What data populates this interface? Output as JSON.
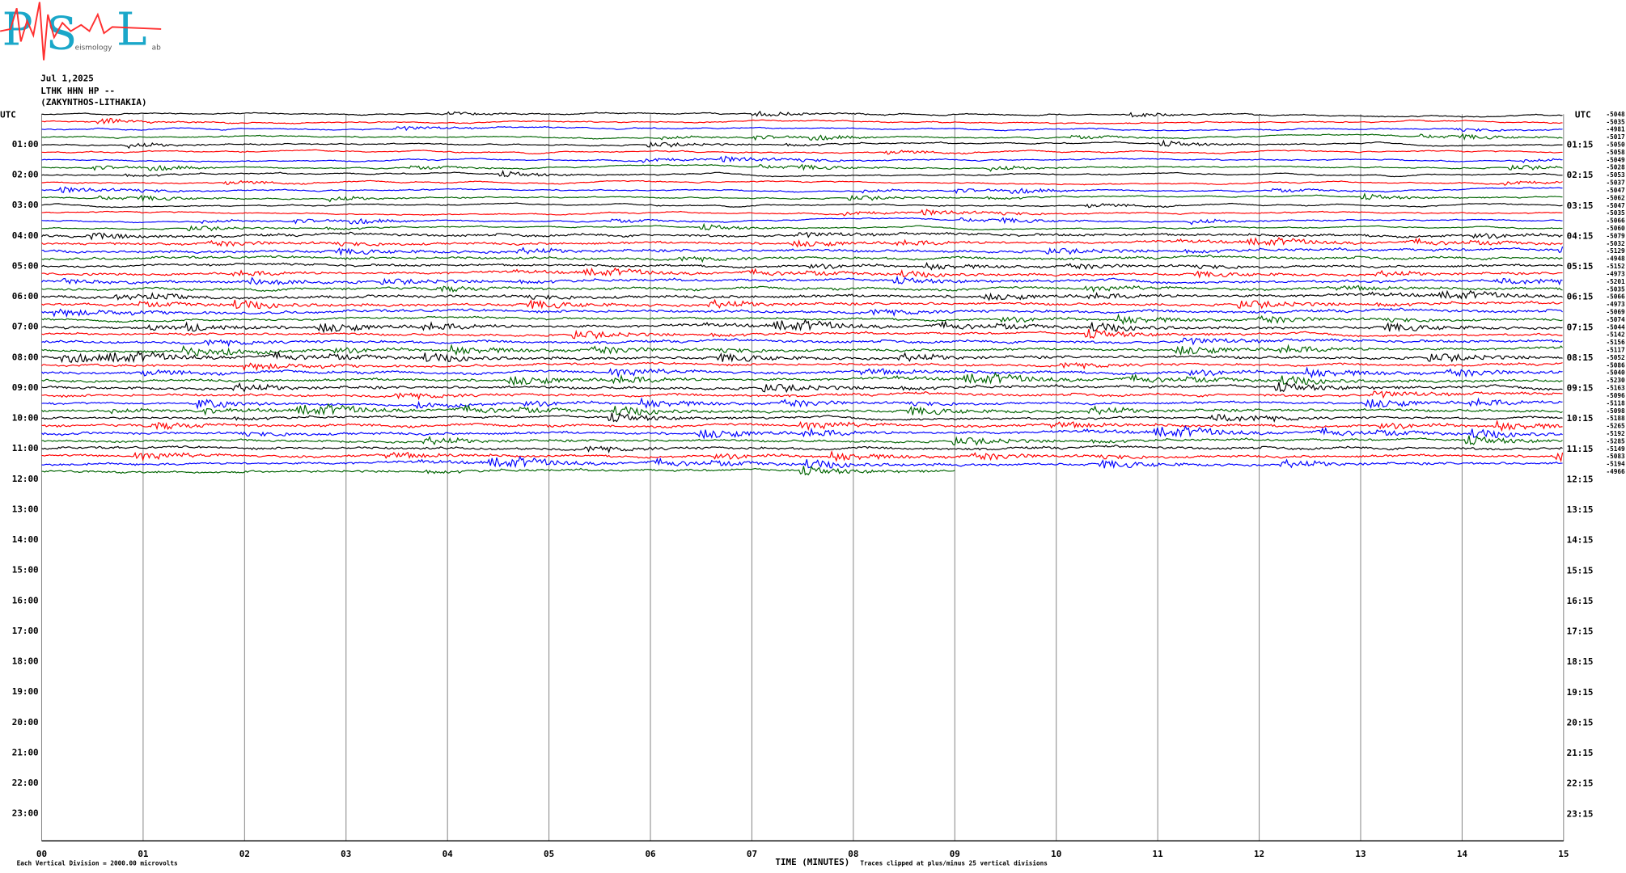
{
  "header": {
    "logo": {
      "letters": [
        "P",
        "S",
        "L"
      ],
      "small": [
        "eismology",
        "ab"
      ]
    },
    "date": "Jul 1,2025",
    "station": "LTHK HHN HP --",
    "location": "(ZAKYNTHOS-LITHAKIA)",
    "utc": "UTC"
  },
  "left_labels": [
    "01:00",
    "02:00",
    "03:00",
    "04:00",
    "05:00",
    "06:00",
    "07:00",
    "08:00",
    "09:00",
    "10:00",
    "11:00",
    "12:00",
    "13:00",
    "14:00",
    "15:00",
    "16:00",
    "17:00",
    "18:00",
    "19:00",
    "20:00",
    "21:00",
    "22:00",
    "23:00"
  ],
  "right_labels": [
    "01:15",
    "02:15",
    "03:15",
    "04:15",
    "05:15",
    "06:15",
    "07:15",
    "08:15",
    "09:15",
    "10:15",
    "11:15",
    "12:15",
    "13:15",
    "14:15",
    "15:15",
    "16:15",
    "17:15",
    "18:15",
    "19:15",
    "20:15",
    "21:15",
    "22:15",
    "23:15"
  ],
  "trace_offsets": [
    -5048,
    -5035,
    -4981,
    -5017,
    -5050,
    -5058,
    -5049,
    -5028,
    -5053,
    -5037,
    -5047,
    -5062,
    -5047,
    -5035,
    -5066,
    -5060,
    -5079,
    -5032,
    -5129,
    -4948,
    -5152,
    -4973,
    -5201,
    -5035,
    -5066,
    -4973,
    -5069,
    -5074,
    -5044,
    -5142,
    -5156,
    -5117,
    -5052,
    -5086,
    -5040,
    -5230,
    -5163,
    -5096,
    -5118,
    -5098,
    -5188,
    -5265,
    -5192,
    -5285,
    -5149,
    -5083,
    -5194,
    -4966
  ],
  "trace_colors": [
    "#000000",
    "#ff0000",
    "#0000ff",
    "#006400"
  ],
  "minute_ticks": [
    "00",
    "01",
    "02",
    "03",
    "04",
    "05",
    "06",
    "07",
    "08",
    "09",
    "10",
    "11",
    "12",
    "13",
    "14",
    "15"
  ],
  "footer": {
    "axis_title": "TIME (MINUTES)",
    "division": "Each Vertical Division = 2000.00 microvolts",
    "clipped": "Traces clipped at plus/minus 25 vertical divisions"
  }
}
